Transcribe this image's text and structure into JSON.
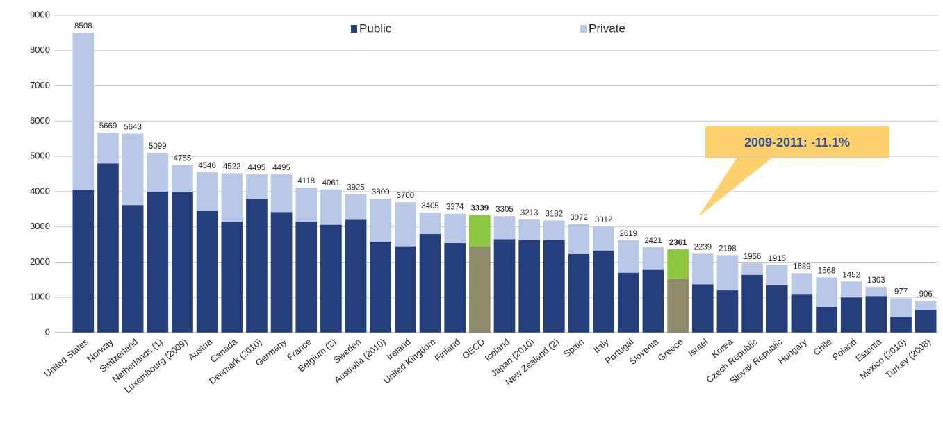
{
  "chart_data": {
    "type": "stacked_bar",
    "categories": [
      "United States",
      "Norway",
      "Switzerland",
      "Netherlands (1)",
      "Luxembourg (2009)",
      "Austria",
      "Canada",
      "Denmark (2010)",
      "Germany",
      "France",
      "Belgium (2)",
      "Sweden",
      "Australia (2010)",
      "Ireland",
      "United Kingdom",
      "Finland",
      "OECD",
      "Iceland",
      "Japan (2010)",
      "New Zealand (2)",
      "Spain",
      "Italy",
      "Portugal",
      "Slovenia",
      "Greece",
      "Israel",
      "Korea",
      "Czech Republic",
      "Slovak Republic",
      "Hungary",
      "Chile",
      "Poland",
      "Estonia",
      "Mexico (2010)",
      "Turkey (2008)"
    ],
    "series": [
      {
        "name": "Public",
        "color": "#243f7c",
        "values": [
          4050,
          4800,
          3620,
          4000,
          3980,
          3450,
          3150,
          3800,
          3420,
          3150,
          3060,
          3200,
          2580,
          2450,
          2800,
          2540,
          2450,
          2650,
          2620,
          2620,
          2230,
          2330,
          1700,
          1780,
          1520,
          1370,
          1200,
          1640,
          1340,
          1080,
          730,
          1000,
          1040,
          450,
          650
        ]
      },
      {
        "name": "Private",
        "color": "#b9c8e6",
        "values": [
          4458,
          869,
          2023,
          1099,
          775,
          1096,
          1372,
          695,
          1075,
          968,
          1001,
          725,
          1220,
          1250,
          605,
          834,
          889,
          655,
          593,
          562,
          842,
          682,
          919,
          641,
          841,
          869,
          998,
          326,
          575,
          609,
          838,
          452,
          263,
          527,
          256
        ]
      }
    ],
    "totals": [
      8508,
      5669,
      5643,
      5099,
      4755,
      4546,
      4522,
      4495,
      4495,
      4118,
      4061,
      3925,
      3800,
      3700,
      3405,
      3374,
      3339,
      3305,
      3213,
      3182,
      3072,
      3012,
      2619,
      2421,
      2361,
      2239,
      2198,
      1966,
      1915,
      1689,
      1568,
      1452,
      1303,
      977,
      906
    ],
    "highlight": {
      "categories": [
        "OECD",
        "Greece"
      ],
      "colors": [
        "#8f8c6c",
        "#8dc63f"
      ]
    },
    "annotation": "2009-2011: -11.1%",
    "ylim": [
      0,
      9000
    ],
    "yticks": [
      0,
      1000,
      2000,
      3000,
      4000,
      5000,
      6000,
      7000,
      8000,
      9000
    ],
    "grid": true
  }
}
